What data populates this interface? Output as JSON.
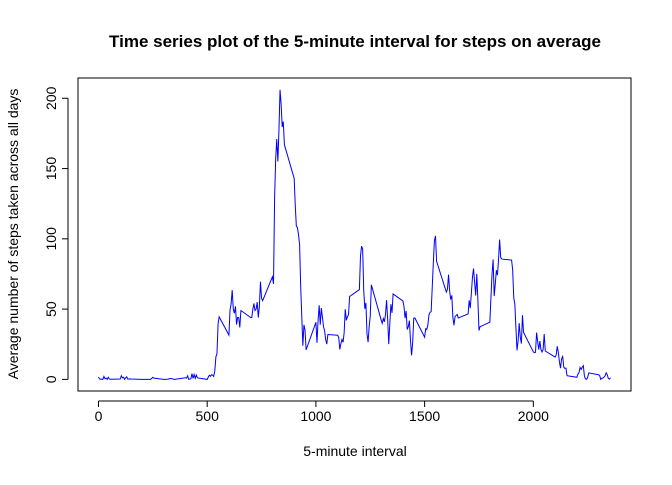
{
  "chart_data": {
    "type": "line",
    "title": "Time series plot of the 5-minute interval for steps on average",
    "xlabel": "5-minute interval",
    "ylabel": "Average number of steps taken across all days",
    "x": [
      0,
      5,
      10,
      15,
      20,
      25,
      30,
      35,
      40,
      45,
      50,
      55,
      100,
      105,
      110,
      115,
      120,
      125,
      130,
      135,
      140,
      145,
      150,
      200,
      230,
      240,
      250,
      255,
      300,
      310,
      320,
      330,
      340,
      345,
      350,
      400,
      405,
      410,
      415,
      420,
      425,
      430,
      435,
      440,
      445,
      450,
      455,
      500,
      505,
      510,
      515,
      520,
      525,
      530,
      535,
      540,
      545,
      550,
      555,
      600,
      605,
      610,
      615,
      620,
      625,
      630,
      635,
      640,
      645,
      650,
      655,
      700,
      705,
      710,
      715,
      720,
      725,
      730,
      735,
      740,
      745,
      750,
      755,
      800,
      805,
      810,
      815,
      820,
      825,
      830,
      835,
      840,
      845,
      850,
      855,
      900,
      905,
      910,
      915,
      920,
      925,
      930,
      935,
      940,
      945,
      950,
      955,
      1000,
      1005,
      1010,
      1015,
      1020,
      1025,
      1030,
      1035,
      1040,
      1045,
      1050,
      1055,
      1100,
      1105,
      1110,
      1115,
      1120,
      1125,
      1130,
      1135,
      1140,
      1145,
      1150,
      1155,
      1200,
      1205,
      1210,
      1215,
      1220,
      1225,
      1230,
      1235,
      1240,
      1245,
      1250,
      1255,
      1300,
      1305,
      1310,
      1315,
      1320,
      1325,
      1330,
      1335,
      1340,
      1345,
      1350,
      1355,
      1400,
      1405,
      1410,
      1415,
      1420,
      1425,
      1430,
      1435,
      1440,
      1445,
      1450,
      1455,
      1500,
      1505,
      1510,
      1515,
      1520,
      1525,
      1530,
      1535,
      1540,
      1545,
      1550,
      1555,
      1600,
      1605,
      1610,
      1615,
      1620,
      1625,
      1630,
      1635,
      1640,
      1645,
      1650,
      1655,
      1700,
      1705,
      1710,
      1715,
      1720,
      1725,
      1730,
      1735,
      1740,
      1745,
      1750,
      1755,
      1800,
      1805,
      1810,
      1815,
      1820,
      1825,
      1830,
      1835,
      1840,
      1845,
      1850,
      1855,
      1900,
      1905,
      1910,
      1915,
      1920,
      1925,
      1930,
      1935,
      1940,
      1945,
      1950,
      1955,
      2000,
      2005,
      2010,
      2015,
      2020,
      2025,
      2030,
      2035,
      2040,
      2045,
      2050,
      2055,
      2100,
      2105,
      2110,
      2115,
      2120,
      2125,
      2130,
      2135,
      2140,
      2145,
      2150,
      2155,
      2200,
      2205,
      2210,
      2215,
      2220,
      2225,
      2230,
      2235,
      2240,
      2245,
      2250,
      2255,
      2300,
      2305,
      2310,
      2315,
      2320,
      2325,
      2330,
      2335,
      2340,
      2345,
      2350,
      2355
    ],
    "series": [
      {
        "color": "#0000ff",
        "values": [
          1.7,
          0.3,
          0.1,
          0.2,
          0,
          2.1,
          0.5,
          0.9,
          0,
          1.5,
          0.3,
          0.1,
          0.3,
          2.6,
          1.1,
          1.5,
          0,
          1.1,
          1.8,
          0.2,
          0.2,
          0.4,
          0.3,
          0,
          0,
          0,
          1.5,
          0.9,
          0,
          0,
          0.2,
          0.6,
          0.5,
          0.1,
          0,
          1.2,
          0.9,
          2.6,
          0,
          0.3,
          0.4,
          4.1,
          0.7,
          3.5,
          0.8,
          3.1,
          1.1,
          0,
          1.6,
          3,
          2.2,
          3.3,
          3,
          2.1,
          6.1,
          16,
          18.3,
          39.5,
          44.5,
          31.5,
          49.3,
          53.8,
          63.5,
          50,
          47,
          52,
          39,
          44,
          44,
          37,
          49,
          44,
          44,
          50,
          54,
          49,
          50,
          55,
          44,
          52,
          69.5,
          57.8,
          56,
          73,
          68,
          129,
          157,
          171,
          155,
          177,
          206,
          195.9,
          179.6,
          183.4,
          167,
          143,
          124,
          109,
          108,
          103,
          95.9,
          66,
          45,
          24,
          38.8,
          35,
          21,
          40.6,
          26,
          42,
          52.7,
          38.9,
          50.8,
          44.3,
          37.4,
          34.7,
          28.3,
          25.1,
          31.9,
          31.4,
          29.7,
          21.3,
          25.5,
          28.4,
          26.5,
          33.4,
          50,
          42,
          44.6,
          46,
          59,
          63.9,
          87.6,
          94.8,
          92.8,
          63.4,
          50.2,
          54.5,
          32.4,
          26.5,
          37.7,
          45.1,
          67.3,
          42.3,
          39.9,
          43.3,
          41,
          46.2,
          56.4,
          42.8,
          25.1,
          40,
          53.5,
          47.3,
          60.8,
          55.8,
          52,
          43.6,
          48.7,
          35.5,
          37.5,
          41.8,
          27.5,
          17.1,
          26.1,
          43.6,
          43.8,
          30,
          36.1,
          35.5,
          38.8,
          46,
          47.8,
          48.1,
          65.3,
          82.9,
          98.7,
          102.1,
          84,
          62.1,
          64.1,
          74.5,
          63.2,
          56.9,
          59.8,
          43.9,
          38.6,
          44.7,
          45.5,
          46.2,
          43.7,
          46.6,
          56.3,
          50.7,
          61.2,
          72.7,
          78.9,
          68.9,
          59.7,
          75.1,
          56.5,
          34.8,
          37.5,
          40.7,
          58,
          74.7,
          85.3,
          59.3,
          67.8,
          77.7,
          74.2,
          85.3,
          99.5,
          86.6,
          85.6,
          84.9,
          77.8,
          58,
          53.4,
          36.3,
          20.7,
          27.4,
          40,
          30.2,
          25.5,
          45.7,
          33.5,
          19.6,
          19,
          19.3,
          33.3,
          26.8,
          21.2,
          27.3,
          21.3,
          19.5,
          21.3,
          32.3,
          20.2,
          15.9,
          17.2,
          23.5,
          19.2,
          12.5,
          8,
          14.7,
          16.3,
          8.7,
          7.8,
          8.1,
          2.6,
          1.5,
          3.7,
          4.8,
          8.5,
          7.1,
          8.7,
          9.8,
          2.2,
          0.3,
          0.1,
          1.6,
          4.6,
          3.3,
          2.8,
          0,
          0.8,
          1,
          1.6,
          2.6,
          4.7,
          3.3,
          0.6,
          0.2,
          1.1
        ]
      }
    ],
    "xlim": [
      -94.2,
      2449.2
    ],
    "ylim": [
      -8.25,
      214.42
    ],
    "xticks": [
      0,
      500,
      1000,
      1500,
      2000
    ],
    "yticks": [
      0,
      50,
      100,
      150,
      200
    ]
  }
}
